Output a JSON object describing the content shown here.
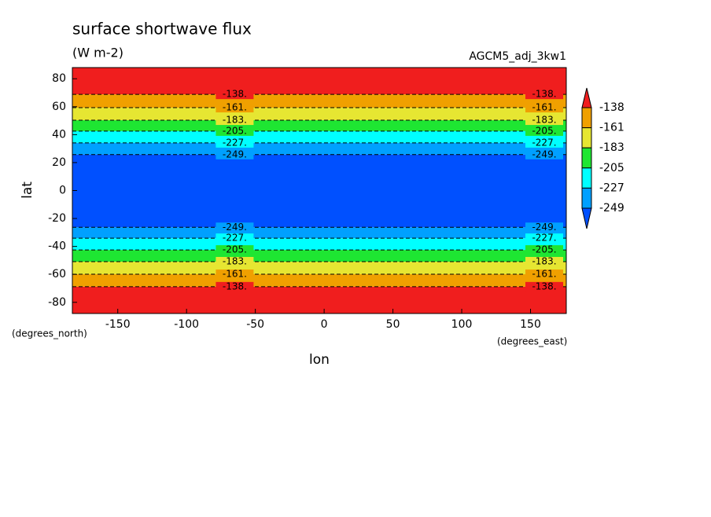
{
  "chart_data": {
    "type": "contour",
    "title": "surface shortwave flux",
    "subtitle": "(W m-2)",
    "annotation": "AGCM5_adj_3kw1",
    "xlabel": "lon",
    "ylabel": "lat",
    "xunit": "(degrees_east)",
    "yunit": "(degrees_north)",
    "xlim": [
      -183,
      176
    ],
    "ylim": [
      -88,
      88
    ],
    "xticks": [
      -150,
      -100,
      -50,
      0,
      50,
      100,
      150
    ],
    "yticks": [
      -80,
      -60,
      -40,
      -20,
      0,
      20,
      40,
      60,
      80
    ],
    "contours": [
      {
        "value": -138,
        "label": "-138.",
        "lat_north": 68.8,
        "lat_south": -68.8
      },
      {
        "value": -161,
        "label": "-161.",
        "lat_north": 59.3,
        "lat_south": -59.9
      },
      {
        "value": -183,
        "label": "-183.",
        "lat_north": 50.3,
        "lat_south": -50.9
      },
      {
        "value": -205,
        "label": "-205.",
        "lat_north": 42.5,
        "lat_south": -42.5
      },
      {
        "value": -227,
        "label": "-227.",
        "lat_north": 34.1,
        "lat_south": -34.1
      },
      {
        "value": -249,
        "label": "-249.",
        "lat_north": 25.7,
        "lat_south": -26.3
      }
    ],
    "colors": [
      "#f01e1e",
      "#f0a000",
      "#e6e632",
      "#1ee632",
      "#00ffff",
      "#00a0ff",
      "#0050ff"
    ]
  }
}
